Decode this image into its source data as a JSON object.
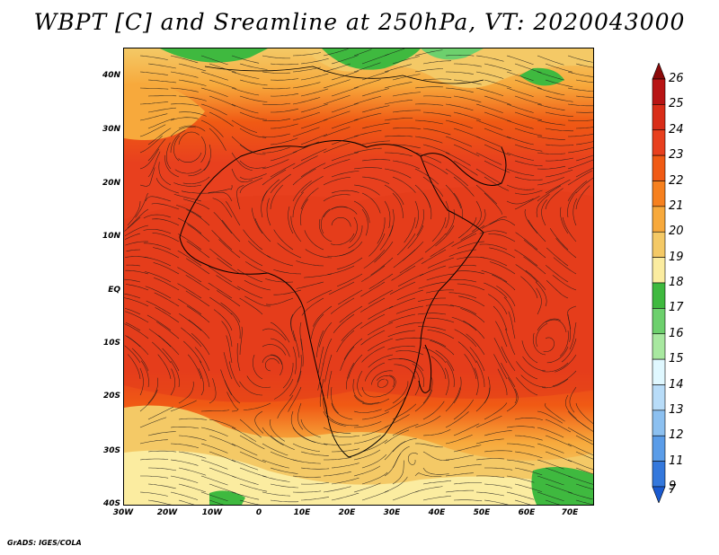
{
  "title": "WBPT [C] and Sreamline at 250hPa, VT: 2020043000",
  "footer": "GrADS: IGES/COLA",
  "map": {
    "variable": "Wet-bulb potential temperature",
    "level": "250hPa",
    "overlay": "Streamlines",
    "lat_labels": [
      "40N",
      "30N",
      "20N",
      "10N",
      "EQ",
      "10S",
      "20S",
      "30S",
      "40S"
    ],
    "lon_labels": [
      "30W",
      "20W",
      "10W",
      "0",
      "10E",
      "20E",
      "30E",
      "40E",
      "50E",
      "60E",
      "70E"
    ]
  },
  "colorbar": {
    "levels": [
      "26",
      "25",
      "24",
      "23",
      "22",
      "21",
      "20",
      "19",
      "18",
      "17",
      "16",
      "15",
      "14",
      "13",
      "12",
      "11",
      "9",
      "7"
    ],
    "colors": [
      "#8b0a0a",
      "#b81414",
      "#d92d18",
      "#e8401e",
      "#f05a14",
      "#f6801e",
      "#f7a93c",
      "#f4c966",
      "#fbeca0",
      "#3fb93f",
      "#6dd06d",
      "#a8e8a0",
      "#e0f8ff",
      "#b8dcf8",
      "#8cc0f0",
      "#5a9ce8",
      "#3478dc",
      "#1a5ad0"
    ]
  }
}
